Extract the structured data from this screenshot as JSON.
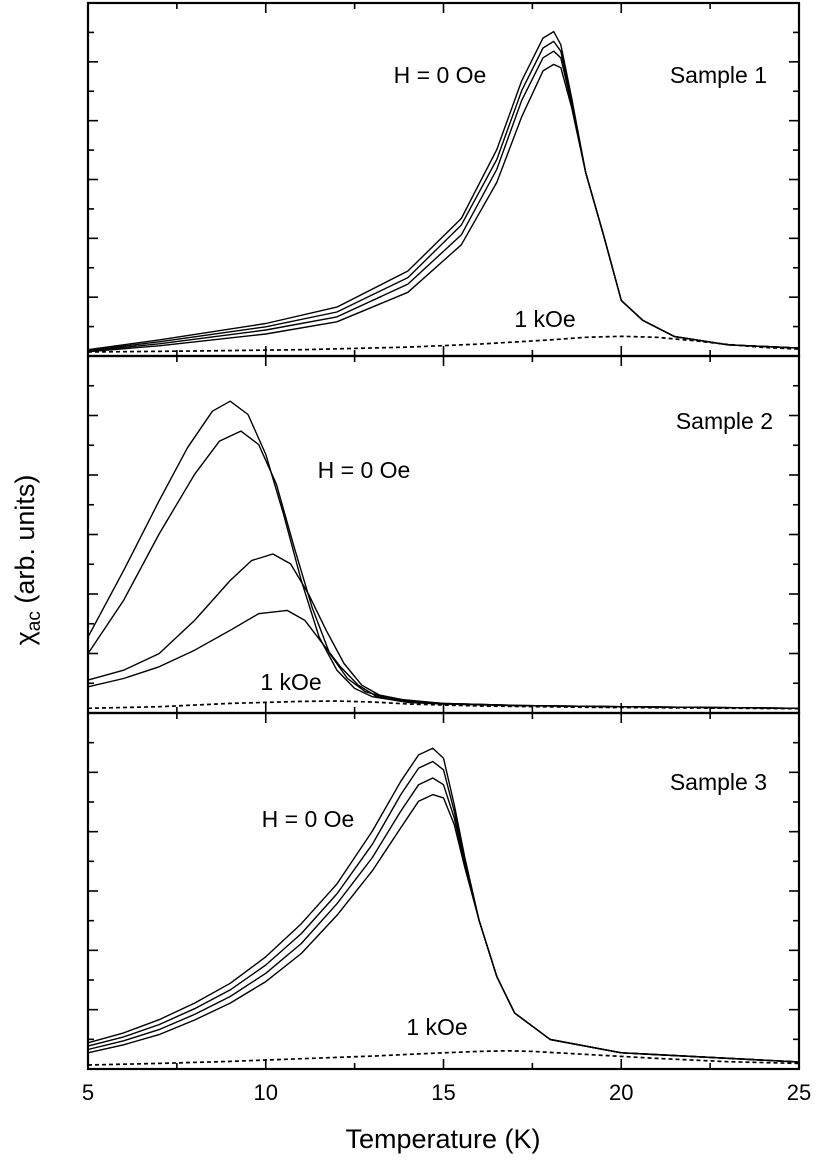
{
  "chart_data": {
    "type": "line",
    "xlabel": "Temperature (K)",
    "ylabel": {
      "main": "χ",
      "sub": "ac",
      "rest": " (arb. units)"
    },
    "xlim": [
      5,
      25
    ],
    "xticks": [
      5,
      10,
      15,
      20,
      25
    ],
    "panels": [
      {
        "title": "Sample 1",
        "ylim": [
          0,
          100
        ],
        "annotations": {
          "top": "H = 0 Oe",
          "bottom": "1 kOe"
        },
        "series": [
          {
            "name": "H = 0 Oe (1)",
            "style": "solid",
            "x": [
              5,
              7,
              10,
              12,
              14,
              15.5,
              16.5,
              17.2,
              17.8,
              18.1,
              18.3,
              18.6,
              19,
              19.5,
              20,
              20.6,
              21.5,
              23,
              25
            ],
            "y": [
              1,
              4,
              9,
              14,
              25,
              41,
              62,
              83,
              96,
              98,
              94,
              78,
              55,
              36,
              16,
              10,
              5,
              2.5,
              1.5
            ]
          },
          {
            "name": "H = 0 Oe (2)",
            "style": "solid",
            "x": [
              5,
              7,
              10,
              12,
              14,
              15.5,
              16.5,
              17.2,
              17.8,
              18.1,
              18.3,
              18.6,
              19,
              19.5,
              20,
              20.6,
              21.5,
              23,
              25
            ],
            "y": [
              0.8,
              3.4,
              8,
              12.5,
              23,
              39,
              59,
              80,
              93,
              95,
              92,
              77,
              55,
              36,
              16,
              10,
              5,
              2.5,
              1.5
            ]
          },
          {
            "name": "H = 0 Oe (3)",
            "style": "solid",
            "x": [
              5,
              7,
              10,
              12,
              14,
              15.5,
              16.5,
              17.2,
              17.8,
              18.1,
              18.3,
              18.6,
              19,
              19.5,
              20,
              20.6,
              21.5,
              23,
              25
            ],
            "y": [
              0.6,
              2.8,
              7,
              11,
              21,
              36,
              56,
              77,
              90,
              92,
              90,
              76,
              55,
              36,
              16,
              10,
              5,
              2.5,
              1.5
            ]
          },
          {
            "name": "H = 0 Oe (4)",
            "style": "solid",
            "x": [
              5,
              7,
              10,
              12,
              14,
              15.5,
              16.5,
              17.2,
              17.8,
              18.1,
              18.3,
              18.6,
              19,
              19.5,
              20,
              20.6,
              21.5,
              23,
              25
            ],
            "y": [
              0.4,
              2.2,
              5.8,
              9.5,
              18.5,
              33,
              52,
              72,
              86,
              88,
              87,
              75,
              55,
              36,
              16,
              10,
              5,
              2.5,
              1.5
            ]
          },
          {
            "name": "1 kOe",
            "style": "dashed",
            "x": [
              5,
              8,
              11,
              14,
              16,
              18,
              19,
              20,
              21,
              22,
              23,
              24,
              25
            ],
            "y": [
              0.3,
              0.6,
              1,
              1.8,
              2.7,
              4,
              4.8,
              5.1,
              4.8,
              3.8,
              2.6,
              1.7,
              1.2
            ]
          }
        ]
      },
      {
        "title": "Sample 2",
        "ylim": [
          0,
          100
        ],
        "annotations": {
          "top": "H = 0 Oe",
          "bottom": "1 kOe"
        },
        "series": [
          {
            "name": "H = 0 Oe (1)",
            "style": "solid",
            "x": [
              5,
              6,
              7,
              7.8,
              8.5,
              9,
              9.5,
              10,
              10.5,
              11,
              11.5,
              12,
              12.5,
              13,
              14,
              15,
              17,
              20,
              25
            ],
            "y": [
              22,
              42,
              63,
              79,
              90,
              93,
              89,
              77,
              59,
              39,
              22,
              12,
              6.5,
              4,
              2.3,
              1.8,
              1.3,
              1,
              0.5
            ]
          },
          {
            "name": "H = 0 Oe (2)",
            "style": "solid",
            "x": [
              5,
              6,
              7,
              8,
              8.7,
              9.3,
              9.8,
              10.3,
              10.8,
              11.3,
              11.8,
              12.3,
              12.8,
              13.5,
              15,
              17,
              20,
              25
            ],
            "y": [
              17,
              33,
              53,
              71,
              81,
              84,
              80,
              68,
              49,
              31,
              17,
              9.5,
              5.5,
              3.5,
              2,
              1.4,
              1,
              0.5
            ]
          },
          {
            "name": "H = 0 Oe (3)",
            "style": "solid",
            "x": [
              5,
              6,
              7,
              8,
              9,
              9.6,
              10.2,
              10.7,
              11.2,
              11.7,
              12.2,
              12.7,
              13.2,
              14,
              15,
              17,
              20,
              25
            ],
            "y": [
              9,
              12,
              17,
              27,
              39,
              45,
              47,
              44,
              35,
              24,
              14,
              7.5,
              4.5,
              2.8,
              2,
              1.4,
              1,
              0.5
            ]
          },
          {
            "name": "H = 0 Oe (4)",
            "style": "solid",
            "x": [
              5,
              6,
              7,
              8,
              9,
              9.8,
              10.6,
              11.1,
              11.6,
              12.1,
              12.6,
              13.1,
              14,
              15,
              17,
              20,
              25
            ],
            "y": [
              7,
              9.5,
              13,
              18,
              24,
              29,
              30,
              27,
              20,
              13,
              7.5,
              4.2,
              2.6,
              2,
              1.4,
              1,
              0.5
            ]
          },
          {
            "name": "1 kOe",
            "style": "dashed",
            "x": [
              5,
              7,
              9,
              11,
              12,
              13,
              14,
              16,
              19,
              22,
              25
            ],
            "y": [
              0.5,
              1,
              2,
              2.6,
              2.7,
              2.4,
              1.8,
              1.2,
              0.8,
              0.6,
              0.4
            ]
          }
        ]
      },
      {
        "title": "Sample 3",
        "ylim": [
          0,
          100
        ],
        "annotations": {
          "top": "H = 0 Oe",
          "bottom": "1 kOe"
        },
        "series": [
          {
            "name": "H = 0 Oe (1)",
            "style": "solid",
            "x": [
              5,
              6,
              7,
              8,
              9,
              10,
              11,
              12,
              13,
              13.8,
              14.3,
              14.7,
              15,
              15.3,
              15.6,
              16,
              16.5,
              17,
              18,
              20,
              25
            ],
            "y": [
              7,
              10,
              14,
              19,
              25,
              33,
              43,
              55,
              71,
              86,
              94,
              96,
              93,
              79,
              63,
              44,
              27,
              16,
              8,
              4,
              1.2
            ]
          },
          {
            "name": "H = 0 Oe (2)",
            "style": "solid",
            "x": [
              5,
              6,
              7,
              8,
              9,
              10,
              11,
              12,
              13,
              13.8,
              14.3,
              14.7,
              15,
              15.3,
              15.6,
              16,
              16.5,
              17,
              18,
              20,
              25
            ],
            "y": [
              6,
              8.8,
              12.5,
              17.3,
              23,
              30.5,
              40,
              52,
              67,
              82,
              90,
              92,
              89.5,
              77,
              62,
              44,
              27,
              16,
              8,
              4,
              1.2
            ]
          },
          {
            "name": "H = 0 Oe (3)",
            "style": "solid",
            "x": [
              5,
              6,
              7,
              8,
              9,
              10,
              11,
              12,
              13,
              13.8,
              14.3,
              14.7,
              15,
              15.3,
              15.6,
              16,
              16.5,
              17,
              18,
              20,
              25
            ],
            "y": [
              5,
              7.6,
              11,
              15.6,
              21,
              28,
              37,
              49,
              63,
              77,
              85,
              87,
              85,
              75,
              61,
              44,
              27,
              16,
              8,
              4,
              1.2
            ]
          },
          {
            "name": "H = 0 Oe (4)",
            "style": "solid",
            "x": [
              5,
              6,
              7,
              8,
              9,
              10,
              11,
              12,
              13,
              13.8,
              14.3,
              14.7,
              15,
              15.3,
              15.6,
              16,
              16.5,
              17,
              18,
              20,
              25
            ],
            "y": [
              4,
              6.4,
              9.5,
              13.9,
              19,
              25.5,
              34,
              45.5,
              59,
              72,
              80,
              82,
              81,
              73,
              60,
              44,
              27,
              16,
              8,
              4,
              1.2
            ]
          },
          {
            "name": "1 kOe",
            "style": "dashed",
            "x": [
              5,
              7,
              9,
              11,
              13,
              14,
              15,
              16,
              16.8,
              17.5,
              19,
              21,
              23,
              25
            ],
            "y": [
              0.3,
              0.8,
              1.4,
              2.2,
              3,
              3.5,
              4,
              4.4,
              4.6,
              4.4,
              3.5,
              2.3,
              1.3,
              0.8
            ]
          }
        ]
      }
    ]
  }
}
